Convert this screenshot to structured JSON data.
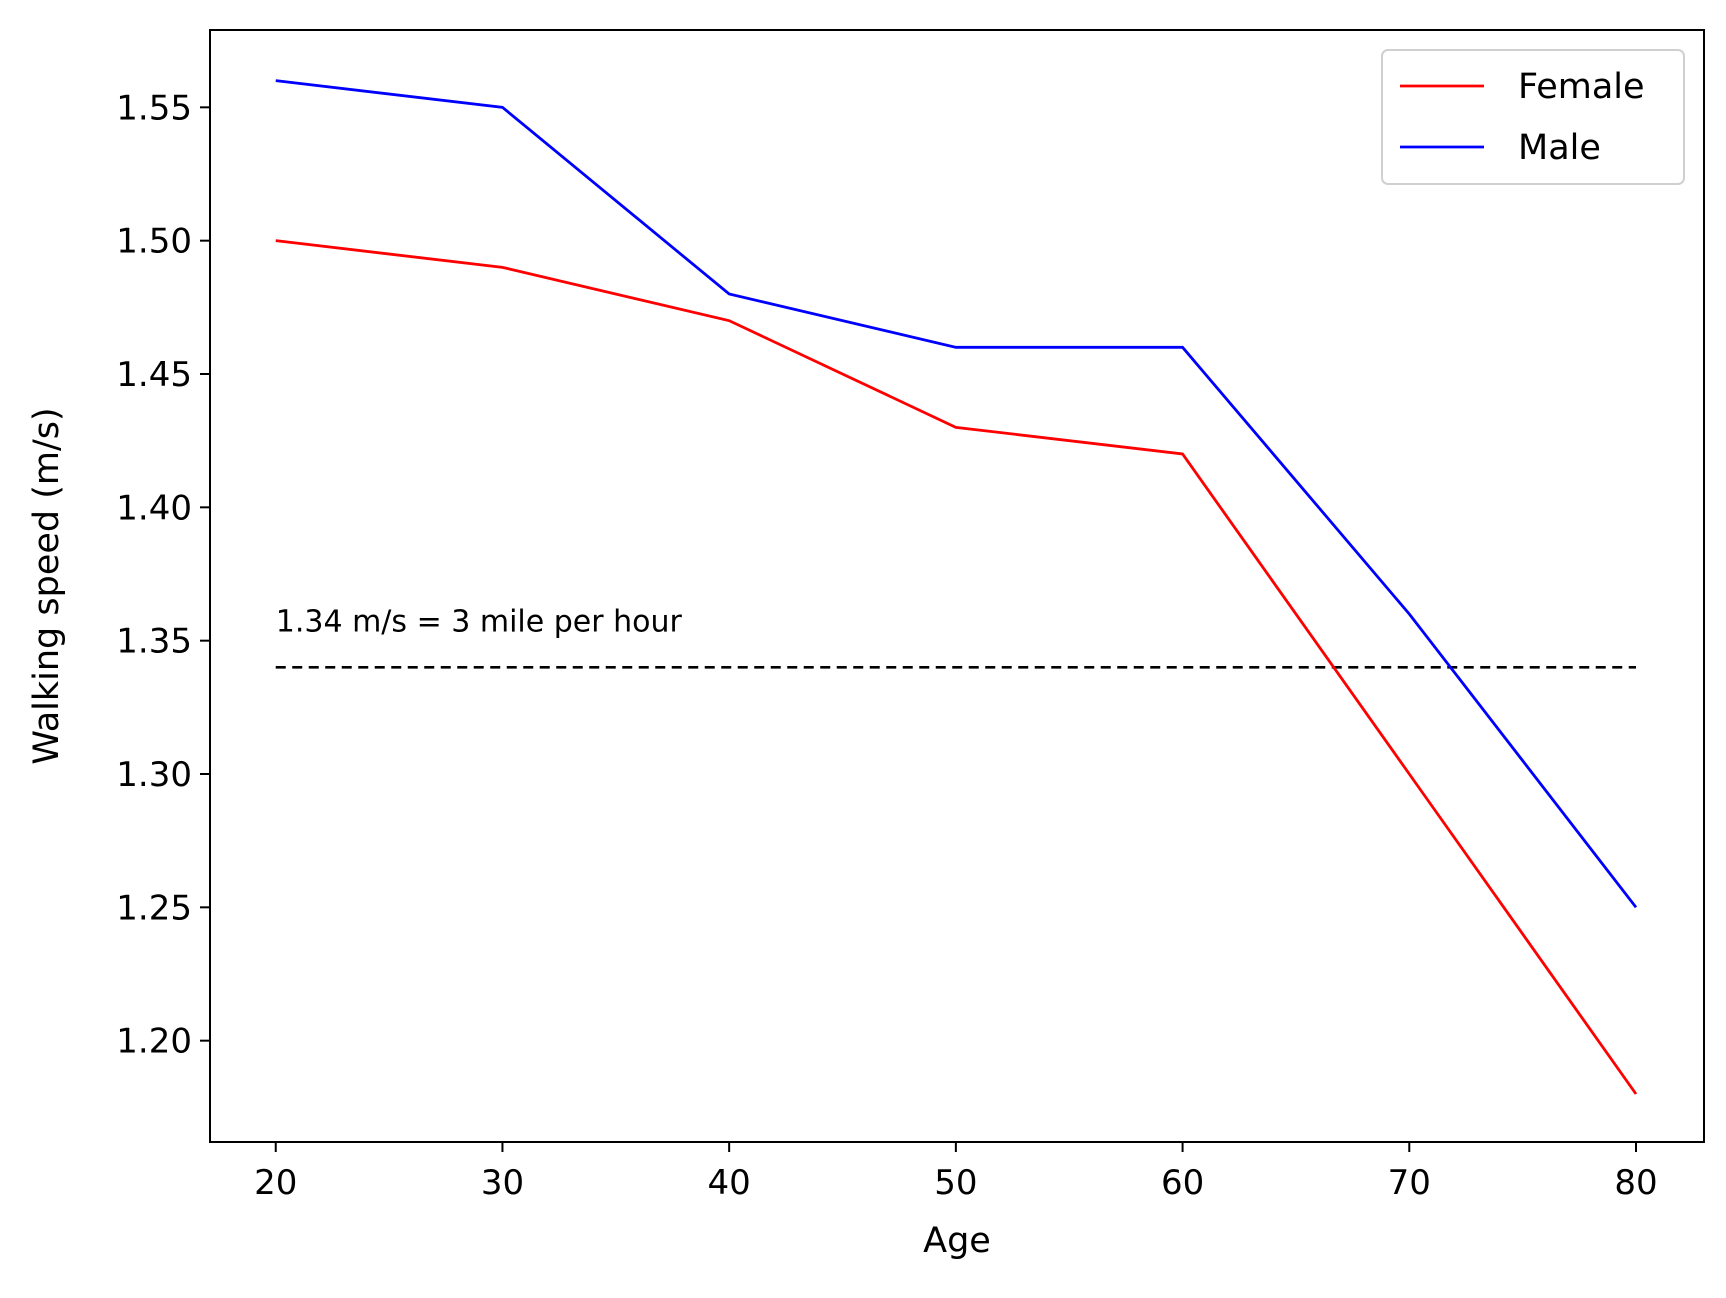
{
  "chart_data": {
    "type": "line",
    "title": "",
    "xlabel": "Age",
    "ylabel": "Walking speed (m/s)",
    "x": [
      20,
      30,
      40,
      50,
      60,
      70,
      80
    ],
    "xlim": [
      17.1,
      83.0
    ],
    "ylim": [
      1.162,
      1.579
    ],
    "xticks": [
      20,
      30,
      40,
      50,
      60,
      70,
      80
    ],
    "xtick_labels": [
      "20",
      "30",
      "40",
      "50",
      "60",
      "70",
      "80"
    ],
    "yticks": [
      1.2,
      1.25,
      1.3,
      1.35,
      1.4,
      1.45,
      1.5,
      1.55
    ],
    "ytick_labels": [
      "1.20",
      "1.25",
      "1.30",
      "1.35",
      "1.40",
      "1.45",
      "1.50",
      "1.55"
    ],
    "grid": false,
    "legend_position": "top-right",
    "series": [
      {
        "name": "Female",
        "color": "#ff0000",
        "values": [
          1.5,
          1.49,
          1.47,
          1.43,
          1.42,
          1.3,
          1.18
        ]
      },
      {
        "name": "Male",
        "color": "#0000ff",
        "values": [
          1.56,
          1.55,
          1.48,
          1.46,
          1.46,
          1.36,
          1.25
        ]
      }
    ],
    "reference_line": {
      "y": 1.34,
      "x_range": [
        20,
        80
      ],
      "style": "dashed",
      "color": "#000000",
      "annotation": "1.34 m/s = 3 mile per hour"
    }
  }
}
